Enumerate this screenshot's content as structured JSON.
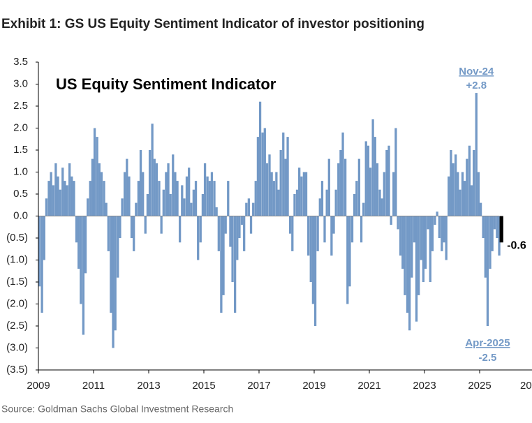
{
  "title": "Exhibit 1: GS US Equity Sentiment Indicator of investor positioning",
  "source": "Source: Goldman Sachs Global Investment Research",
  "chart_data": {
    "type": "bar",
    "title": "US Equity Sentiment Indicator",
    "color": "#7399c6",
    "last_color": "#000000",
    "xlim": [
      2009,
      2027
    ],
    "xticks": [
      2009,
      2011,
      2013,
      2015,
      2017,
      2019,
      2021,
      2023,
      2025,
      {
        "value": 2027,
        "label": "20"
      }
    ],
    "ylim": [
      -3.5,
      3.5
    ],
    "yticks": [
      3.5,
      {
        "value": 3,
        "label": "3.0"
      },
      2.5,
      {
        "value": 2,
        "label": "2.0"
      },
      1.5,
      {
        "value": 1,
        "label": "1.0"
      },
      0.5,
      {
        "value": 0,
        "label": "0.0"
      },
      {
        "value": -0.5,
        "label": "(0.5)"
      },
      {
        "value": -1,
        "label": "(1.0)"
      },
      {
        "value": -1.5,
        "label": "(1.5)"
      },
      {
        "value": -2,
        "label": "(2.0)"
      },
      {
        "value": -2.5,
        "label": "(2.5)"
      },
      {
        "value": -3,
        "label": "(3.0)"
      },
      {
        "value": -3.5,
        "label": "(3.5)"
      }
    ],
    "x": [
      2009.04,
      2009.13,
      2009.21,
      2009.29,
      2009.38,
      2009.46,
      2009.54,
      2009.63,
      2009.71,
      2009.79,
      2009.88,
      2009.96,
      2010.04,
      2010.13,
      2010.21,
      2010.29,
      2010.38,
      2010.46,
      2010.54,
      2010.63,
      2010.71,
      2010.79,
      2010.88,
      2010.96,
      2011.04,
      2011.13,
      2011.21,
      2011.29,
      2011.38,
      2011.46,
      2011.54,
      2011.63,
      2011.71,
      2011.79,
      2011.88,
      2011.96,
      2012.04,
      2012.13,
      2012.21,
      2012.29,
      2012.38,
      2012.46,
      2012.54,
      2012.63,
      2012.71,
      2012.79,
      2012.88,
      2012.96,
      2013.04,
      2013.13,
      2013.21,
      2013.29,
      2013.38,
      2013.46,
      2013.54,
      2013.63,
      2013.71,
      2013.79,
      2013.88,
      2013.96,
      2014.04,
      2014.13,
      2014.21,
      2014.29,
      2014.38,
      2014.46,
      2014.54,
      2014.63,
      2014.71,
      2014.79,
      2014.88,
      2014.96,
      2015.04,
      2015.13,
      2015.21,
      2015.29,
      2015.38,
      2015.46,
      2015.54,
      2015.63,
      2015.71,
      2015.79,
      2015.88,
      2015.96,
      2016.04,
      2016.13,
      2016.21,
      2016.29,
      2016.38,
      2016.46,
      2016.54,
      2016.63,
      2016.71,
      2016.79,
      2016.88,
      2016.96,
      2017.04,
      2017.13,
      2017.21,
      2017.29,
      2017.38,
      2017.46,
      2017.54,
      2017.63,
      2017.71,
      2017.79,
      2017.88,
      2017.96,
      2018.04,
      2018.13,
      2018.21,
      2018.29,
      2018.38,
      2018.46,
      2018.54,
      2018.63,
      2018.71,
      2018.79,
      2018.88,
      2018.96,
      2019.04,
      2019.13,
      2019.21,
      2019.29,
      2019.38,
      2019.46,
      2019.54,
      2019.63,
      2019.71,
      2019.79,
      2019.88,
      2019.96,
      2020.04,
      2020.13,
      2020.21,
      2020.29,
      2020.38,
      2020.46,
      2020.54,
      2020.63,
      2020.71,
      2020.79,
      2020.88,
      2020.96,
      2021.04,
      2021.13,
      2021.21,
      2021.29,
      2021.38,
      2021.46,
      2021.54,
      2021.63,
      2021.71,
      2021.79,
      2021.88,
      2021.96,
      2022.04,
      2022.13,
      2022.21,
      2022.29,
      2022.38,
      2022.46,
      2022.54,
      2022.63,
      2022.71,
      2022.79,
      2022.88,
      2022.96,
      2023.04,
      2023.13,
      2023.21,
      2023.29,
      2023.38,
      2023.46,
      2023.54,
      2023.63,
      2023.71,
      2023.79,
      2023.88,
      2023.96,
      2024.04,
      2024.13,
      2024.21,
      2024.29,
      2024.38,
      2024.46,
      2024.54,
      2024.63,
      2024.71,
      2024.79,
      2024.88,
      2024.96,
      2025.04,
      2025.13,
      2025.21,
      2025.29,
      2025.38,
      2025.46,
      2025.54,
      2025.63,
      2025.71,
      2025.79
    ],
    "values": [
      -1.6,
      -2.2,
      -1.0,
      0.4,
      0.8,
      1.0,
      0.7,
      1.2,
      0.9,
      0.6,
      1.1,
      0.8,
      0.7,
      1.2,
      0.9,
      0.8,
      -0.6,
      -1.2,
      -2.0,
      -2.7,
      -1.3,
      0.4,
      0.8,
      1.3,
      2.0,
      1.8,
      1.2,
      1.0,
      0.8,
      0.3,
      -0.8,
      -2.2,
      -3.0,
      -2.6,
      -1.4,
      -0.5,
      0.4,
      1.0,
      1.3,
      0.9,
      -0.5,
      -0.8,
      0.3,
      0.8,
      1.5,
      1.0,
      -0.4,
      0.5,
      1.5,
      2.1,
      1.3,
      1.2,
      0.8,
      -0.4,
      0.6,
      1.0,
      1.2,
      0.5,
      1.4,
      1.0,
      0.8,
      -0.6,
      0.7,
      0.4,
      0.9,
      1.1,
      0.3,
      0.6,
      0.8,
      -1.0,
      -0.6,
      0.5,
      1.2,
      0.9,
      0.8,
      1.0,
      0.8,
      0.2,
      -0.8,
      -2.2,
      -1.8,
      -0.4,
      0.8,
      -0.7,
      -1.5,
      -2.2,
      -1.0,
      -0.5,
      -0.2,
      -0.8,
      0.3,
      0.4,
      -0.4,
      0.3,
      0.8,
      1.8,
      2.6,
      1.9,
      2.0,
      1.2,
      1.4,
      1.0,
      0.8,
      1.0,
      0.6,
      1.5,
      1.9,
      1.3,
      1.8,
      -0.4,
      -0.8,
      0.5,
      0.6,
      1.1,
      0.9,
      1.0,
      1.0,
      -0.9,
      -1.5,
      -2.0,
      -2.5,
      -0.8,
      0.4,
      0.8,
      -0.6,
      0.6,
      1.3,
      -0.9,
      -0.4,
      0.6,
      1.2,
      1.5,
      1.9,
      1.3,
      -2.0,
      -1.6,
      -0.6,
      0.5,
      0.8,
      1.3,
      -0.6,
      0.3,
      1.7,
      1.6,
      1.1,
      2.2,
      1.8,
      1.2,
      0.6,
      0.4,
      1.0,
      1.5,
      1.6,
      -0.2,
      1.0,
      2.0,
      -0.3,
      -0.9,
      -1.2,
      -1.8,
      -2.2,
      -2.6,
      -1.4,
      -0.6,
      -2.4,
      -1.8,
      -1.0,
      -1.5,
      -1.2,
      -0.3,
      -1.5,
      -0.8,
      -0.2,
      0.1,
      -0.5,
      -0.8,
      -0.6,
      -1.0,
      0.9,
      1.5,
      1.2,
      1.4,
      1.0,
      0.6,
      1.0,
      0.8,
      1.3,
      1.6,
      0.7,
      1.5,
      2.8,
      1.0,
      0.3,
      -0.5,
      -1.4,
      -2.5,
      -1.2,
      -0.8,
      -0.3,
      -0.5,
      -0.9,
      -0.6
    ],
    "annotations": [
      {
        "date": "Nov-24",
        "value_label": "+2.8",
        "x": 2024.88,
        "y": 2.8,
        "color": "#7399c6",
        "position": "above"
      },
      {
        "date": "Apr-2025",
        "value_label": "-2.5",
        "x": 2025.29,
        "y": -2.5,
        "color": "#7399c6",
        "position": "below"
      },
      {
        "value_label": "-0.6",
        "x": 2025.79,
        "y": -0.6,
        "color": "#000000",
        "position": "right"
      }
    ]
  }
}
